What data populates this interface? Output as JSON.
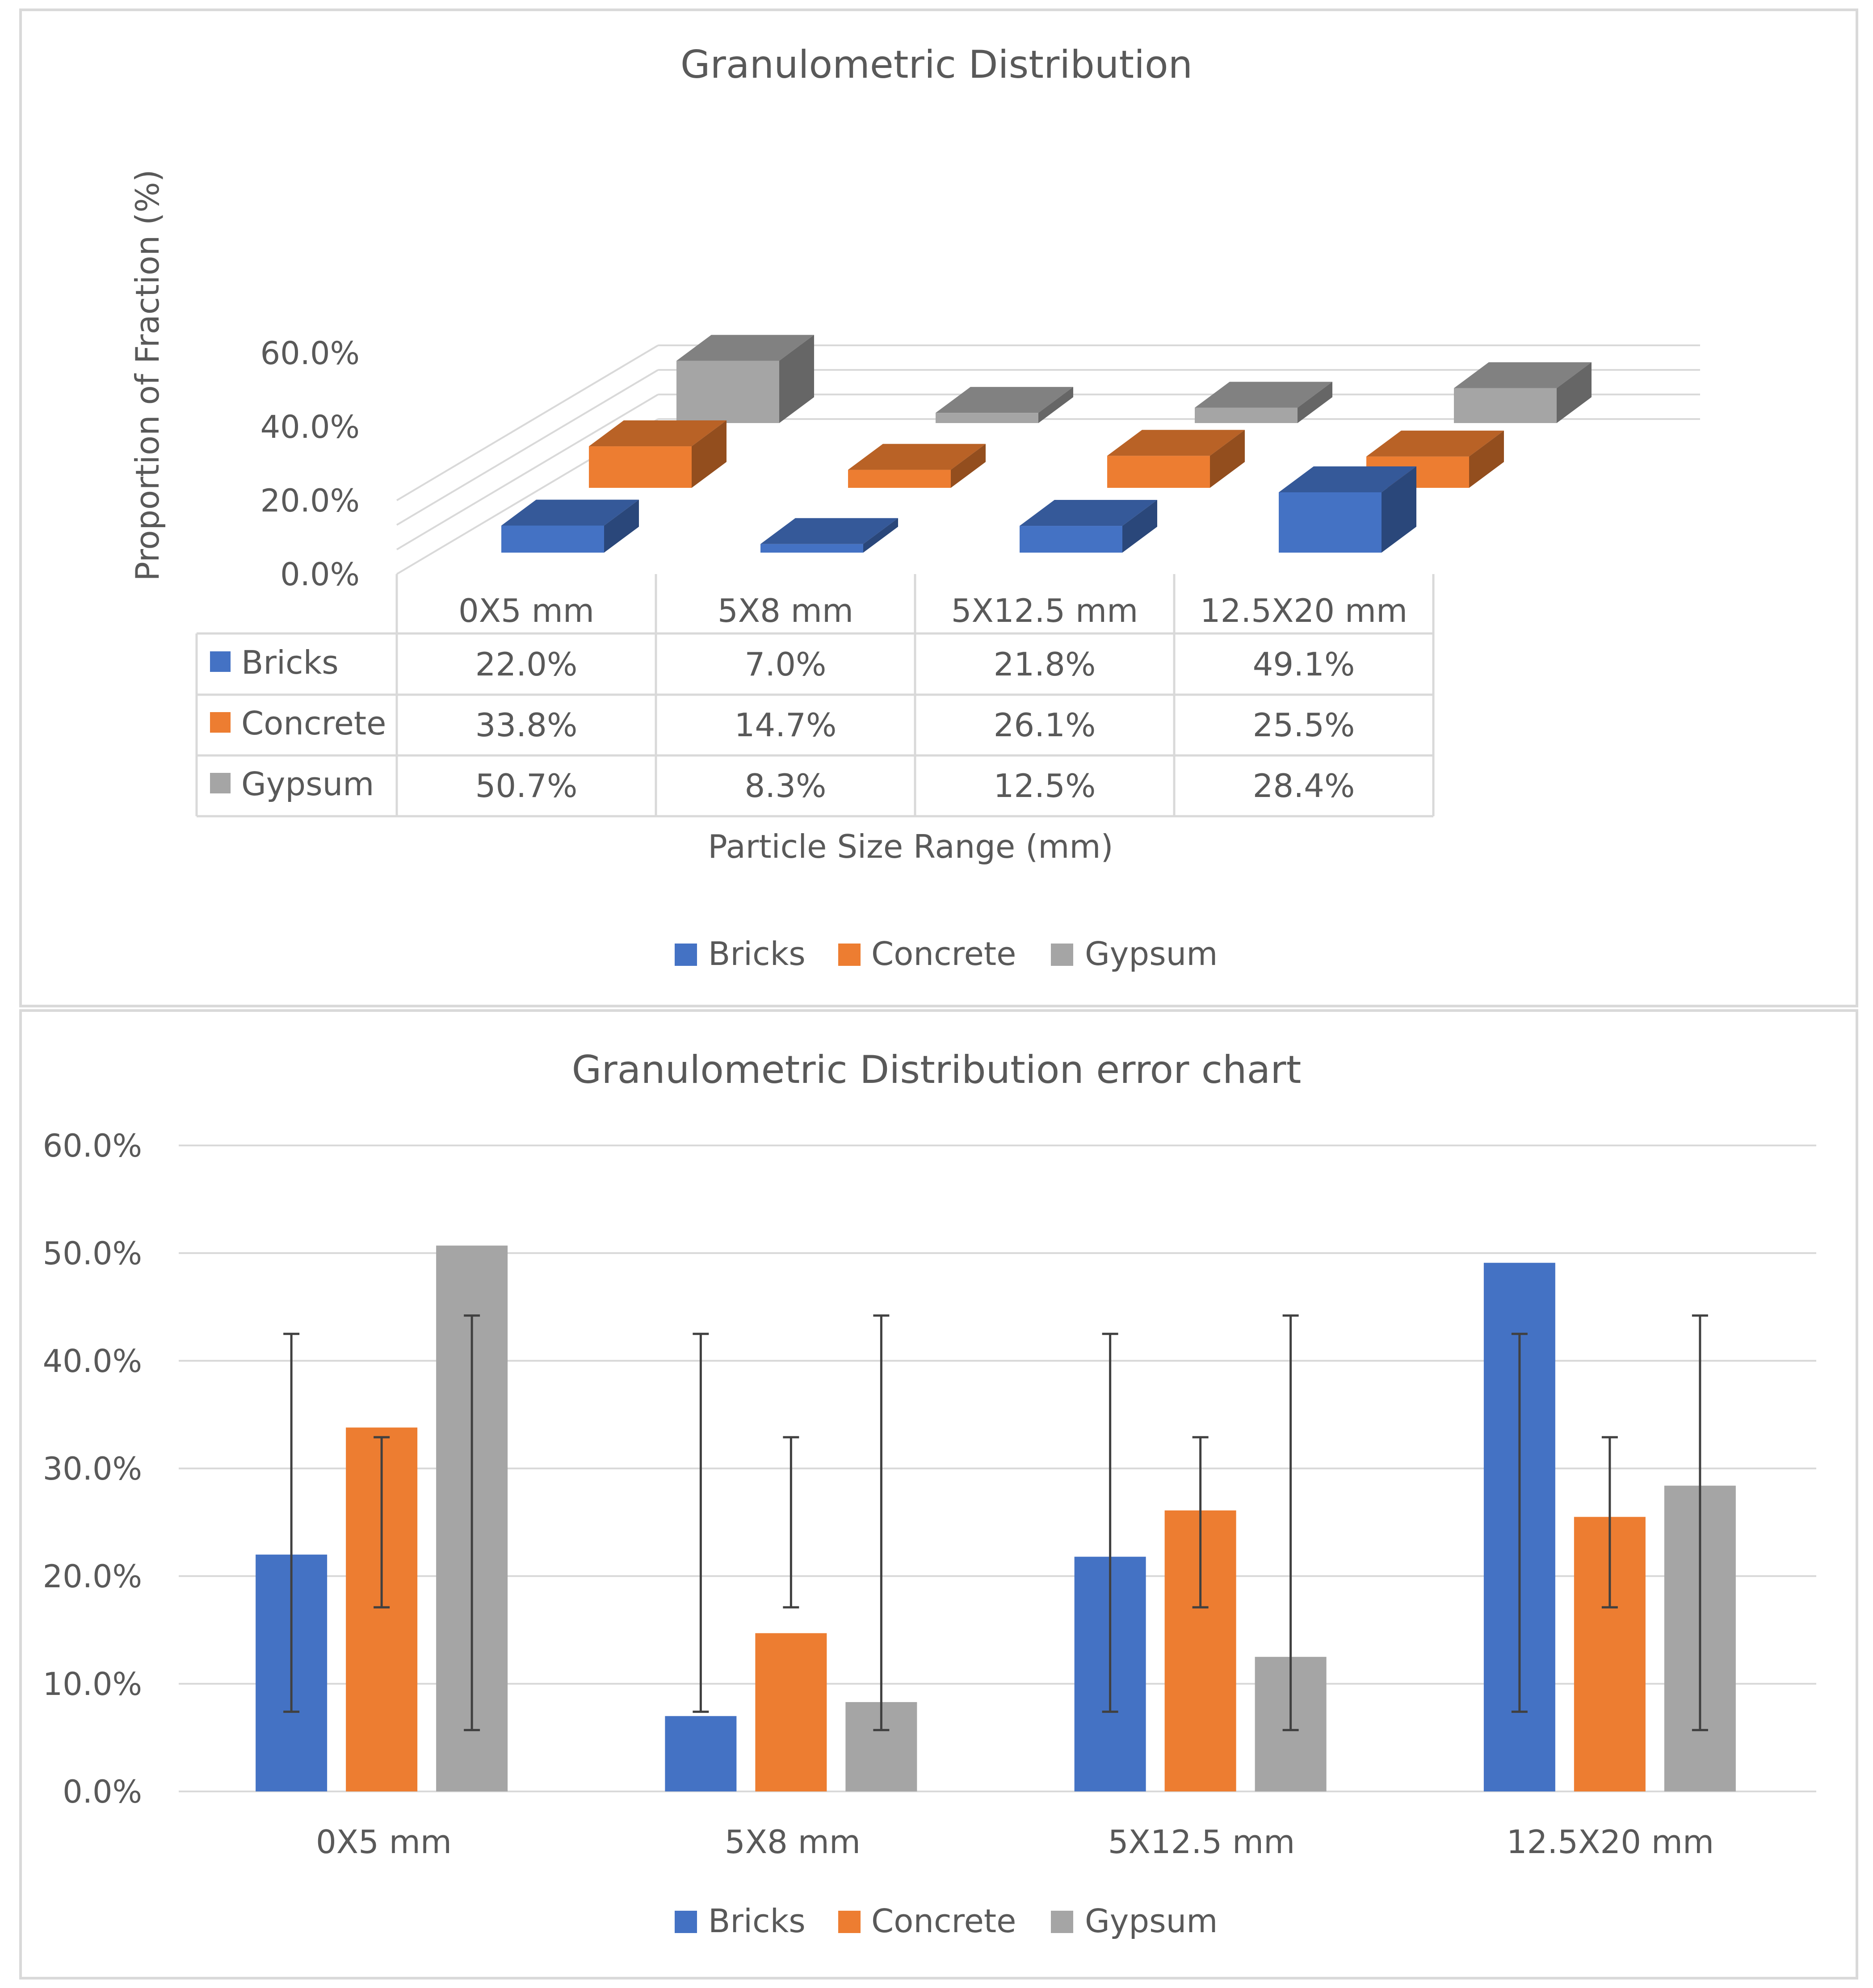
{
  "colors": {
    "bricks": "#4472C4",
    "concrete": "#ED7D31",
    "gypsum": "#A5A5A5",
    "text": "#595959",
    "grid": "#D9D9D9",
    "errorbar": "#404040"
  },
  "chart_data": [
    {
      "type": "bar",
      "variant": "3d-with-data-table",
      "title": "Granulometric Distribution",
      "xlabel": "Particle Size Range (mm)",
      "ylabel": "Proportion of Fraction (%)",
      "ylim": [
        0,
        60
      ],
      "yticks": [
        "0.0%",
        "20.0%",
        "40.0%",
        "60.0%"
      ],
      "categories": [
        "0X5 mm",
        "5X8 mm",
        "5X12.5 mm",
        "12.5X20 mm"
      ],
      "series": [
        {
          "name": "Bricks",
          "values": [
            22.0,
            7.0,
            21.8,
            49.1
          ],
          "labels": [
            "22.0%",
            "7.0%",
            "21.8%",
            "49.1%"
          ]
        },
        {
          "name": "Concrete",
          "values": [
            33.8,
            14.7,
            26.1,
            25.5
          ],
          "labels": [
            "33.8%",
            "14.7%",
            "26.1%",
            "25.5%"
          ]
        },
        {
          "name": "Gypsum",
          "values": [
            50.7,
            8.3,
            12.5,
            28.4
          ],
          "labels": [
            "50.7%",
            "8.3%",
            "12.5%",
            "28.4%"
          ]
        }
      ],
      "legend": [
        "Bricks",
        "Concrete",
        "Gypsum"
      ],
      "legend_position": "bottom"
    },
    {
      "type": "bar",
      "variant": "clustered-with-error-bars",
      "title": "Granulometric Distribution error chart",
      "xlabel": "",
      "ylabel": "",
      "ylim": [
        0,
        60
      ],
      "yticks": [
        "0.0%",
        "10.0%",
        "20.0%",
        "30.0%",
        "40.0%",
        "50.0%",
        "60.0%"
      ],
      "categories": [
        "0X5 mm",
        "5X8 mm",
        "5X12.5 mm",
        "12.5X20 mm"
      ],
      "series": [
        {
          "name": "Bricks",
          "values": [
            22.0,
            7.0,
            21.8,
            49.1
          ],
          "error_range": [
            7.4,
            42.5
          ]
        },
        {
          "name": "Concrete",
          "values": [
            33.8,
            14.7,
            26.1,
            25.5
          ],
          "error_range": [
            17.1,
            32.9
          ]
        },
        {
          "name": "Gypsum",
          "values": [
            50.7,
            8.3,
            12.5,
            28.4
          ],
          "error_range": [
            5.7,
            44.2
          ]
        }
      ],
      "legend": [
        "Bricks",
        "Concrete",
        "Gypsum"
      ],
      "legend_position": "bottom",
      "grid": true
    }
  ]
}
